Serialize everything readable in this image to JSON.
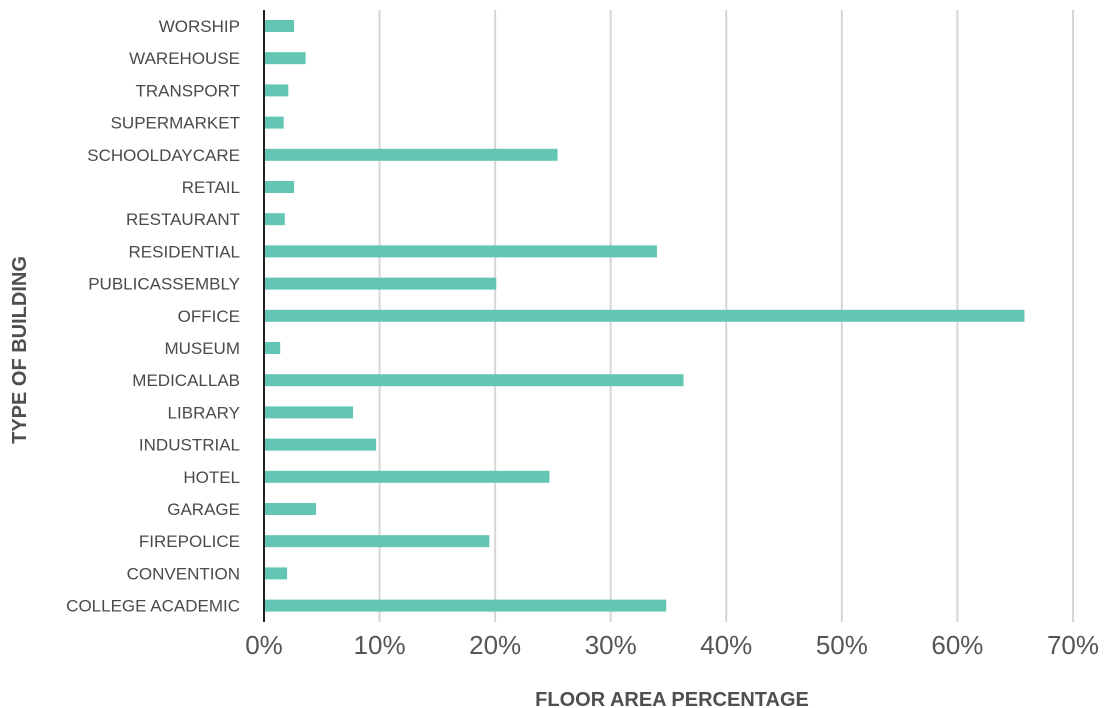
{
  "chart_data": {
    "type": "bar",
    "orientation": "horizontal",
    "title": "",
    "xlabel": "FLOOR AREA PERCENTAGE",
    "ylabel": "TYPE OF BUILDING",
    "xlim": [
      0,
      70
    ],
    "x_ticks": [
      "0%",
      "10%",
      "20%",
      "30%",
      "40%",
      "50%",
      "60%",
      "70%"
    ],
    "grid": "vertical",
    "bar_color": "#63c5b3",
    "categories": [
      "WORSHIP",
      "WAREHOUSE",
      "TRANSPORT",
      "SUPERMARKET",
      "SCHOOLDAYCARE",
      "RETAIL",
      "RESTAURANT",
      "RESIDENTIAL",
      "PUBLICASSEMBLY",
      "OFFICE",
      "MUSEUM",
      "MEDICALLAB",
      "LIBRARY",
      "INDUSTRIAL",
      "HOTEL",
      "GARAGE",
      "FIREPOLICE",
      "CONVENTION",
      "COLLEGE ACADEMIC"
    ],
    "values": [
      2.6,
      3.6,
      2.1,
      1.7,
      25.4,
      2.6,
      1.8,
      34.0,
      20.1,
      65.8,
      1.4,
      36.3,
      7.7,
      9.7,
      24.7,
      4.5,
      19.5,
      2.0,
      34.8
    ]
  }
}
